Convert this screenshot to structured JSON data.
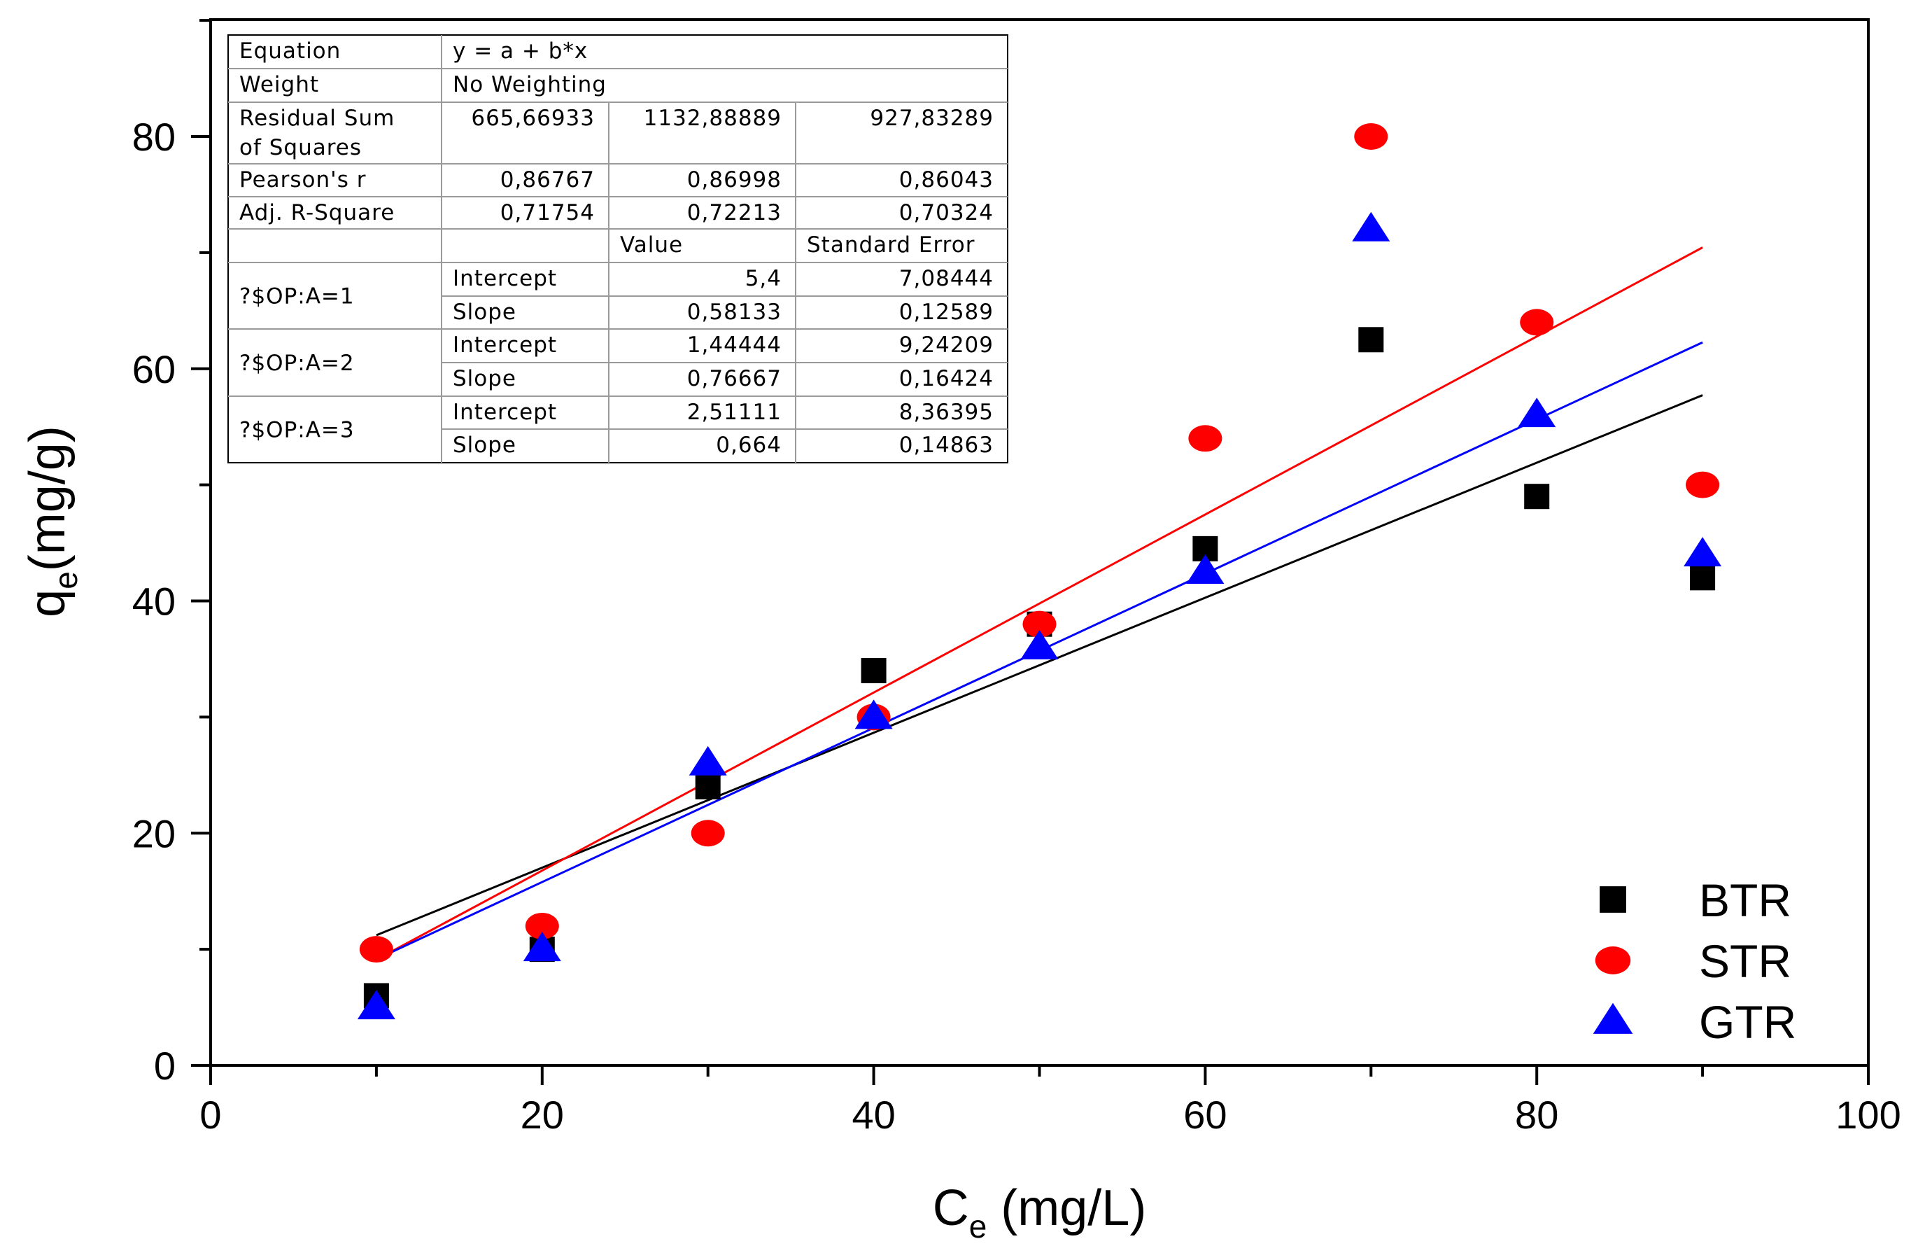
{
  "chart_data": {
    "type": "scatter",
    "xlabel": "C",
    "xlabel_sub": "e",
    "xlabel_unit": " (mg/L)",
    "ylabel": "q",
    "ylabel_sub": "e",
    "ylabel_unit": "(mg/g)",
    "xlim": [
      0,
      100
    ],
    "ylim": [
      0,
      80
    ],
    "x_ticks": [
      "0",
      "20",
      "40",
      "60",
      "80",
      "100"
    ],
    "y_ticks": [
      "0",
      "20",
      "40",
      "60",
      "80"
    ],
    "grid": false,
    "legend_position": "bottom-right",
    "series": [
      {
        "name": "BTR",
        "marker": "square",
        "color": "#000000",
        "x": [
          10,
          20,
          30,
          40,
          50,
          60,
          70,
          80,
          90
        ],
        "y": [
          6,
          10,
          24,
          34,
          38,
          44.5,
          62.5,
          49,
          42
        ],
        "fit": {
          "intercept": 5.4,
          "slope": 0.58133,
          "x_range": [
            10,
            90
          ],
          "color": "#000000"
        }
      },
      {
        "name": "STR",
        "marker": "circle",
        "color": "#ff0000",
        "x": [
          10,
          20,
          30,
          40,
          50,
          60,
          70,
          80,
          90
        ],
        "y": [
          10,
          12,
          20,
          30,
          38,
          54,
          80,
          64,
          50
        ],
        "fit": {
          "intercept": 1.44444,
          "slope": 0.76667,
          "x_range": [
            10,
            90
          ],
          "color": "#ff0000"
        }
      },
      {
        "name": "GTR",
        "marker": "triangle",
        "color": "#0000ff",
        "x": [
          10,
          20,
          30,
          40,
          50,
          60,
          70,
          80,
          90
        ],
        "y": [
          5,
          10,
          26,
          30,
          36,
          42.5,
          72,
          56,
          44
        ],
        "fit": {
          "intercept": 2.51111,
          "slope": 0.664,
          "x_range": [
            10,
            90
          ],
          "color": "#0000ff"
        }
      }
    ],
    "table": {
      "rows": [
        [
          "Equation",
          "y = a + b*x",
          "",
          ""
        ],
        [
          "Weight",
          "No Weighting",
          "",
          ""
        ],
        [
          "Residual Sum|of Squares",
          "665,66933",
          "1132,88889",
          "927,83289"
        ],
        [
          "Pearson's r",
          "0,86767",
          "0,86998",
          "0,86043"
        ],
        [
          "Adj. R-Square",
          "0,71754",
          "0,72213",
          "0,70324"
        ],
        [
          "",
          "",
          "Value",
          "Standard Error"
        ],
        [
          "?$OP:A=1",
          "Intercept",
          "5,4",
          "7,08444"
        ],
        [
          "",
          "Slope",
          "0,58133",
          "0,12589"
        ],
        [
          "?$OP:A=2",
          "Intercept",
          "1,44444",
          "9,24209"
        ],
        [
          "",
          "Slope",
          "0,76667",
          "0,16424"
        ],
        [
          "?$OP:A=3",
          "Intercept",
          "2,51111",
          "8,36395"
        ],
        [
          "",
          "Slope",
          "0,664",
          "0,14863"
        ]
      ]
    }
  }
}
